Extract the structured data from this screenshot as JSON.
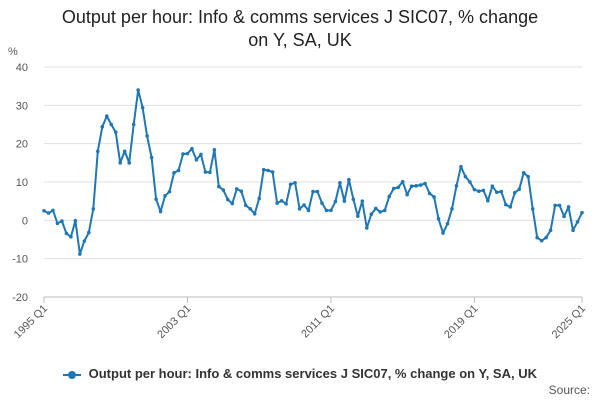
{
  "chart_data": {
    "type": "line",
    "title_line1": "Output per hour: Info & comms services J SIC07, % change",
    "title_line2": "on Y, SA, UK",
    "ylabel": "%",
    "xlabel": "",
    "ylim": [
      -20,
      40
    ],
    "yticks": [
      "40",
      "30",
      "20",
      "10",
      "0",
      "-10",
      "-20"
    ],
    "ytick_values": [
      40,
      30,
      20,
      10,
      0,
      -10,
      -20
    ],
    "xticks": [
      "1995 Q1",
      "2003 Q1",
      "2011 Q1",
      "2019 Q1",
      "2025 Q1"
    ],
    "xtick_index": [
      0,
      32,
      64,
      96,
      120
    ],
    "grid": "horizontal",
    "legend_position": "bottom",
    "color": "#1f77b4",
    "series": [
      {
        "name": "Output per hour: Info & comms services J SIC07, % change on Y, SA, UK",
        "start": "1995 Q1",
        "frequency": "quarterly",
        "values": [
          2.5,
          1.9,
          2.6,
          -0.8,
          -0.2,
          -3.4,
          -4.3,
          -0.1,
          -8.8,
          -5.4,
          -3.2,
          3.0,
          18.0,
          24.4,
          27.2,
          25.0,
          23.0,
          15.0,
          18.0,
          15.0,
          25.0,
          34.0,
          29.4,
          22.0,
          16.4,
          5.5,
          2.3,
          6.4,
          7.5,
          12.4,
          13.0,
          17.3,
          17.4,
          18.7,
          15.8,
          17.2,
          12.6,
          12.5,
          18.4,
          8.8,
          7.9,
          5.4,
          4.4,
          8.2,
          7.6,
          3.9,
          3.0,
          1.7,
          5.7,
          13.2,
          13.0,
          12.6,
          4.5,
          5.1,
          4.3,
          9.4,
          9.8,
          3.0,
          4.0,
          2.6,
          7.5,
          7.5,
          4.5,
          2.6,
          2.6,
          4.9,
          9.8,
          5.0,
          10.6,
          5.5,
          1.1,
          5.0,
          -2.0,
          1.6,
          3.1,
          2.2,
          2.6,
          6.2,
          8.3,
          8.6,
          10.1,
          6.7,
          8.9,
          9.0,
          9.2,
          9.6,
          7.0,
          6.1,
          0.4,
          -3.3,
          -0.9,
          3.0,
          9.0,
          14.0,
          11.4,
          10.0,
          8.0,
          7.6,
          7.8,
          5.1,
          8.9,
          7.3,
          7.5,
          4.1,
          3.5,
          7.2,
          8.1,
          12.4,
          11.4,
          3.0,
          -4.5,
          -5.3,
          -4.5,
          -2.6,
          3.9,
          3.9,
          1.0,
          3.5,
          -2.6,
          -0.4,
          2.0
        ]
      }
    ]
  },
  "legend": {
    "label": "Output per hour: Info & comms services J SIC07, % change on Y, SA, UK"
  },
  "footer": {
    "source_label": "Source:"
  }
}
